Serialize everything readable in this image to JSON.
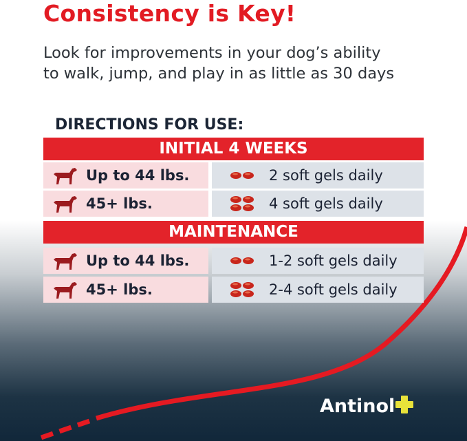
{
  "title": "Consistency is Key!",
  "subtitle": [
    "Look for improvements in your dog’s ability",
    "to walk, jump, and play in as little as 30 days"
  ],
  "directions_label": "DIRECTIONS FOR USE:",
  "sections": [
    {
      "header": "INITIAL 4 WEEKS",
      "rows": [
        {
          "weight": "Up to 44 lbs.",
          "dose": "2 soft gels daily",
          "gels": 2
        },
        {
          "weight": "45+ lbs.",
          "dose": "4 soft gels daily",
          "gels": 4
        }
      ]
    },
    {
      "header": "MAINTENANCE",
      "rows": [
        {
          "weight": "Up to 44 lbs.",
          "dose": "1-2 soft gels daily",
          "gels": 2
        },
        {
          "weight": "45+ lbs.",
          "dose": "2-4 soft gels daily",
          "gels": 4
        }
      ]
    }
  ],
  "brand": {
    "name": "Antinol",
    "accent": "#e8e23a",
    "red": "#e21b23"
  }
}
